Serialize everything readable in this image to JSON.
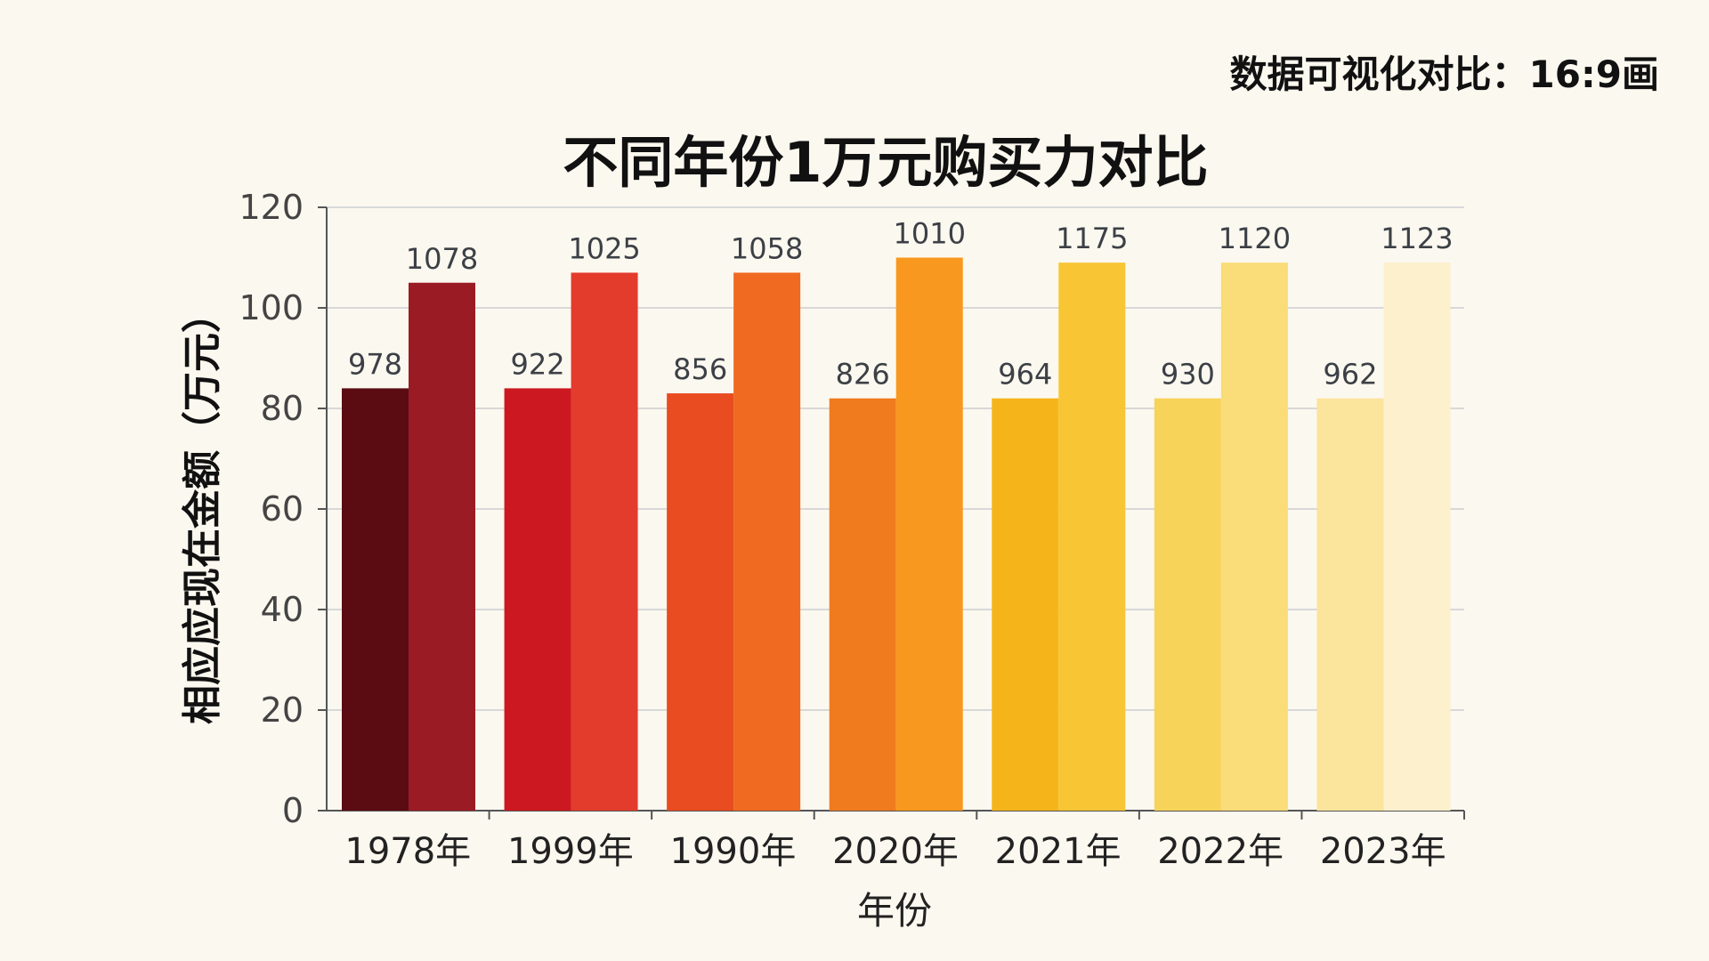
{
  "corner_note": "数据可视化对比：16:9画",
  "chart_data": {
    "type": "bar",
    "title": "不同年份1万元购买力对比",
    "xlabel": "年份",
    "ylabel": "相应应现在金额（万元）",
    "ylim": [
      0,
      120
    ],
    "yticks": [
      0,
      20,
      40,
      60,
      80,
      100,
      120
    ],
    "grid": true,
    "categories": [
      "1978年",
      "1999年",
      "1990年",
      "2020年",
      "2021年",
      "2022年",
      "2023年"
    ],
    "series": [
      {
        "values": [
          84,
          84,
          83,
          82,
          82,
          82,
          82
        ],
        "labels": [
          "978",
          "922",
          "856",
          "826",
          "964",
          "930",
          "962"
        ]
      },
      {
        "values": [
          105,
          107,
          107,
          110,
          109,
          109,
          109
        ],
        "labels": [
          "1078",
          "1025",
          "1058",
          "1010",
          "1175",
          "1120",
          "1123"
        ]
      }
    ],
    "colors": [
      [
        "#5a0c12",
        "#9a1b24"
      ],
      [
        "#cc1820",
        "#e33b2c"
      ],
      [
        "#e84c20",
        "#f06a22"
      ],
      [
        "#f07a1e",
        "#f8981e"
      ],
      [
        "#f5b51a",
        "#f8c535"
      ],
      [
        "#f8d35a",
        "#fadc78"
      ],
      [
        "#fbe49c",
        "#fdf0cc"
      ]
    ]
  }
}
